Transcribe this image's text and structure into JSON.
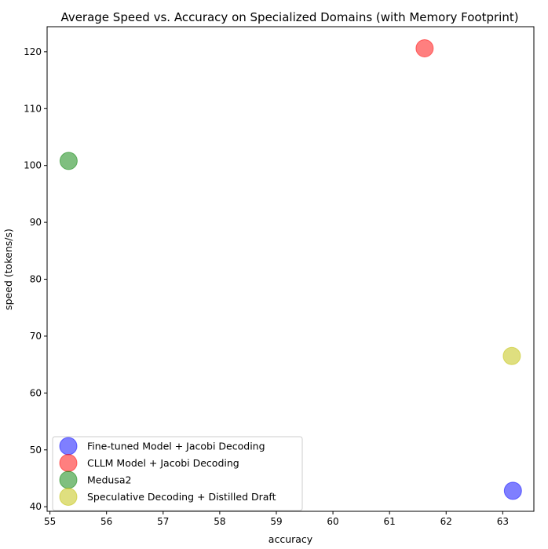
{
  "chart_data": {
    "type": "scatter",
    "title": "Average Speed vs. Accuracy on Specialized Domains (with Memory Footprint)",
    "xlabel": "accuracy",
    "ylabel": "speed (tokens/s)",
    "xlim": [
      54.95,
      63.55
    ],
    "ylim": [
      39.2,
      124.4
    ],
    "xticks": [
      55,
      56,
      57,
      58,
      59,
      60,
      61,
      62,
      63
    ],
    "yticks": [
      40,
      50,
      60,
      70,
      80,
      90,
      100,
      110,
      120
    ],
    "grid": false,
    "legend_position": "lower left",
    "series": [
      {
        "name": "Fine-tuned Model + Jacobi Decoding",
        "color": "#0000ff",
        "alpha": 0.5,
        "points": [
          {
            "x": 63.18,
            "y": 42.8
          }
        ]
      },
      {
        "name": "CLLM Model + Jacobi Decoding",
        "color": "#ff0000",
        "alpha": 0.5,
        "points": [
          {
            "x": 61.62,
            "y": 120.6
          }
        ]
      },
      {
        "name": "Medusa2",
        "color": "#008000",
        "alpha": 0.5,
        "points": [
          {
            "x": 55.33,
            "y": 100.8
          }
        ]
      },
      {
        "name": "Speculative Decoding + Distilled Draft",
        "color": "#bfbf00",
        "alpha": 0.5,
        "points": [
          {
            "x": 63.16,
            "y": 66.5
          }
        ]
      }
    ]
  }
}
